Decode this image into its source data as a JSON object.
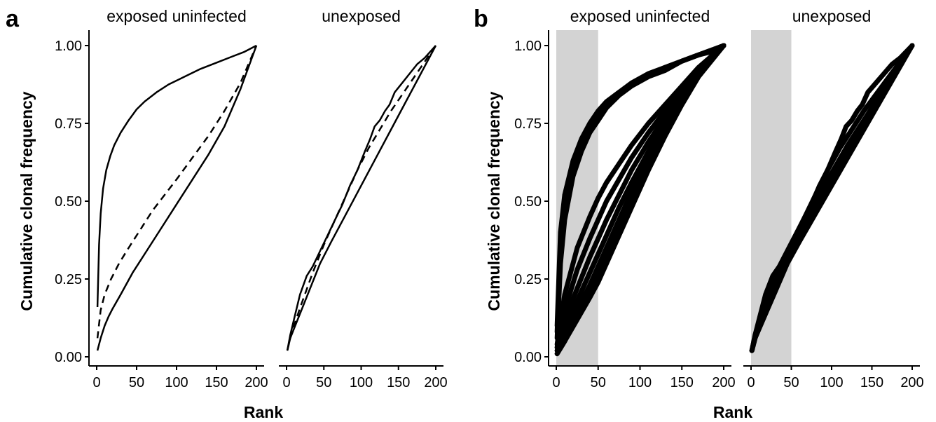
{
  "figure": {
    "panel_a_label": "a",
    "panel_b_label": "b",
    "x_axis_title": "Rank",
    "y_axis_title": "Cumulative clonal frequency"
  },
  "chart_data": [
    {
      "type": "line",
      "panel": "a",
      "xlabel": "Rank",
      "ylabel": "Cumulative clonal frequency",
      "xlim": [
        0,
        200
      ],
      "ylim": [
        0,
        1
      ],
      "x_ticks": [
        "0",
        "50",
        "100",
        "150",
        "200"
      ],
      "y_ticks": [
        "0.00",
        "0.25",
        "0.50",
        "0.75",
        "1.00"
      ],
      "grid": false,
      "facets": [
        {
          "name": "exposed uninfected",
          "series": [
            {
              "style": "solid",
              "x": [
                1,
                3,
                5,
                8,
                12,
                17,
                22,
                30,
                40,
                50,
                60,
                75,
                90,
                110,
                130,
                150,
                170,
                185,
                200
              ],
              "y": [
                0.16,
                0.36,
                0.46,
                0.54,
                0.6,
                0.645,
                0.68,
                0.72,
                0.76,
                0.795,
                0.82,
                0.85,
                0.875,
                0.9,
                0.925,
                0.945,
                0.965,
                0.98,
                1.0
              ]
            },
            {
              "style": "dashed",
              "x": [
                1,
                5,
                10,
                18,
                28,
                40,
                55,
                70,
                85,
                100,
                120,
                140,
                160,
                180,
                200
              ],
              "y": [
                0.06,
                0.15,
                0.2,
                0.25,
                0.3,
                0.35,
                0.41,
                0.47,
                0.52,
                0.57,
                0.64,
                0.71,
                0.79,
                0.88,
                1.0
              ]
            },
            {
              "style": "solid",
              "x": [
                1,
                5,
                10,
                15,
                20,
                30,
                45,
                60,
                80,
                100,
                120,
                140,
                160,
                180,
                200
              ],
              "y": [
                0.02,
                0.06,
                0.1,
                0.13,
                0.155,
                0.2,
                0.27,
                0.33,
                0.41,
                0.49,
                0.57,
                0.65,
                0.74,
                0.86,
                1.0
              ]
            }
          ]
        },
        {
          "name": "unexposed",
          "series": [
            {
              "style": "solid",
              "x": [
                1,
                5,
                10,
                18,
                27,
                35,
                45,
                55,
                65,
                75,
                85,
                95,
                105,
                112,
                118,
                125,
                132,
                138,
                145,
                155,
                165,
                175,
                185,
                200
              ],
              "y": [
                0.02,
                0.07,
                0.12,
                0.2,
                0.26,
                0.29,
                0.34,
                0.39,
                0.44,
                0.49,
                0.55,
                0.6,
                0.66,
                0.7,
                0.74,
                0.76,
                0.79,
                0.81,
                0.85,
                0.88,
                0.91,
                0.94,
                0.96,
                1.0
              ]
            },
            {
              "style": "dashed",
              "x": [
                1,
                5,
                10,
                20,
                35,
                50,
                65,
                80,
                95,
                110,
                125,
                140,
                160,
                180,
                200
              ],
              "y": [
                0.02,
                0.06,
                0.1,
                0.17,
                0.27,
                0.36,
                0.44,
                0.52,
                0.6,
                0.67,
                0.73,
                0.79,
                0.86,
                0.93,
                1.0
              ]
            },
            {
              "style": "solid",
              "x": [
                1,
                5,
                10,
                20,
                30,
                45,
                60,
                80,
                100,
                120,
                140,
                160,
                180,
                200
              ],
              "y": [
                0.02,
                0.06,
                0.09,
                0.15,
                0.21,
                0.3,
                0.37,
                0.46,
                0.55,
                0.64,
                0.73,
                0.82,
                0.91,
                1.0
              ]
            }
          ]
        }
      ]
    },
    {
      "type": "scatter",
      "panel": "b",
      "xlabel": "Rank",
      "ylabel": "Cumulative clonal frequency",
      "xlim": [
        0,
        200
      ],
      "ylim": [
        0,
        1
      ],
      "x_ticks": [
        "0",
        "50",
        "100",
        "150",
        "200"
      ],
      "y_ticks": [
        "0.00",
        "0.25",
        "0.50",
        "0.75",
        "1.00"
      ],
      "grid": false,
      "highlight_band": {
        "x": [
          0,
          50
        ],
        "color": "#d3d3d3"
      },
      "facets": [
        {
          "name": "exposed uninfected",
          "series": [
            {
              "x": [
                1,
                5,
                10,
                20,
                30,
                40,
                50,
                60,
                75,
                90,
                110,
                130,
                150,
                170,
                185,
                200
              ],
              "y": [
                0.1,
                0.4,
                0.52,
                0.63,
                0.7,
                0.75,
                0.79,
                0.82,
                0.85,
                0.88,
                0.91,
                0.93,
                0.95,
                0.97,
                0.98,
                1.0
              ]
            },
            {
              "x": [
                1,
                5,
                10,
                20,
                30,
                40,
                50,
                60,
                75,
                90,
                110,
                130,
                150,
                170,
                185,
                200
              ],
              "y": [
                0.06,
                0.3,
                0.44,
                0.58,
                0.66,
                0.72,
                0.76,
                0.8,
                0.84,
                0.87,
                0.9,
                0.92,
                0.95,
                0.97,
                0.985,
                1.0
              ]
            },
            {
              "x": [
                1,
                5,
                10,
                20,
                30,
                40,
                50,
                60,
                75,
                90,
                110,
                130,
                150,
                170,
                185,
                200
              ],
              "y": [
                0.08,
                0.35,
                0.48,
                0.6,
                0.68,
                0.73,
                0.77,
                0.81,
                0.845,
                0.875,
                0.905,
                0.93,
                0.95,
                0.97,
                0.985,
                1.0
              ]
            },
            {
              "x": [
                1,
                10,
                25,
                40,
                50,
                60,
                75,
                90,
                110,
                130,
                150,
                170,
                200
              ],
              "y": [
                0.04,
                0.2,
                0.35,
                0.45,
                0.51,
                0.56,
                0.62,
                0.68,
                0.75,
                0.81,
                0.87,
                0.93,
                1.0
              ]
            },
            {
              "x": [
                1,
                10,
                25,
                40,
                50,
                60,
                75,
                90,
                110,
                130,
                150,
                170,
                200
              ],
              "y": [
                0.03,
                0.15,
                0.28,
                0.38,
                0.44,
                0.5,
                0.57,
                0.64,
                0.72,
                0.79,
                0.86,
                0.92,
                1.0
              ]
            },
            {
              "x": [
                1,
                10,
                25,
                40,
                50,
                60,
                75,
                90,
                110,
                130,
                150,
                170,
                200
              ],
              "y": [
                0.03,
                0.12,
                0.22,
                0.32,
                0.38,
                0.44,
                0.52,
                0.6,
                0.69,
                0.77,
                0.85,
                0.92,
                1.0
              ]
            },
            {
              "x": [
                1,
                10,
                25,
                40,
                50,
                60,
                75,
                90,
                110,
                130,
                150,
                170,
                200
              ],
              "y": [
                0.02,
                0.09,
                0.18,
                0.27,
                0.33,
                0.39,
                0.48,
                0.56,
                0.66,
                0.76,
                0.84,
                0.92,
                1.0
              ]
            },
            {
              "x": [
                1,
                10,
                25,
                40,
                50,
                60,
                75,
                90,
                110,
                130,
                150,
                170,
                200
              ],
              "y": [
                0.02,
                0.07,
                0.15,
                0.23,
                0.29,
                0.35,
                0.44,
                0.53,
                0.64,
                0.74,
                0.83,
                0.91,
                1.0
              ]
            },
            {
              "x": [
                1,
                10,
                25,
                40,
                50,
                60,
                75,
                90,
                110,
                130,
                150,
                170,
                200
              ],
              "y": [
                0.01,
                0.05,
                0.12,
                0.19,
                0.24,
                0.3,
                0.39,
                0.48,
                0.6,
                0.71,
                0.81,
                0.9,
                1.0
              ]
            },
            {
              "x": [
                1,
                10,
                25,
                40,
                50,
                60,
                75,
                90,
                110,
                130,
                150,
                170,
                200
              ],
              "y": [
                0.01,
                0.05,
                0.14,
                0.21,
                0.26,
                0.32,
                0.41,
                0.5,
                0.62,
                0.72,
                0.82,
                0.91,
                1.0
              ]
            }
          ]
        },
        {
          "name": "unexposed",
          "series": [
            {
              "x": [
                1,
                5,
                10,
                18,
                27,
                35,
                45,
                55,
                65,
                75,
                85,
                95,
                105,
                112,
                118,
                125,
                132,
                138,
                145,
                155,
                165,
                175,
                185,
                200
              ],
              "y": [
                0.02,
                0.07,
                0.12,
                0.2,
                0.26,
                0.29,
                0.34,
                0.39,
                0.44,
                0.49,
                0.55,
                0.6,
                0.66,
                0.7,
                0.74,
                0.76,
                0.79,
                0.81,
                0.85,
                0.88,
                0.91,
                0.94,
                0.96,
                1.0
              ]
            },
            {
              "x": [
                1,
                5,
                10,
                20,
                35,
                50,
                65,
                80,
                95,
                110,
                125,
                140,
                160,
                180,
                200
              ],
              "y": [
                0.02,
                0.06,
                0.1,
                0.17,
                0.27,
                0.36,
                0.44,
                0.52,
                0.6,
                0.67,
                0.73,
                0.79,
                0.86,
                0.93,
                1.0
              ]
            },
            {
              "x": [
                1,
                5,
                10,
                20,
                30,
                45,
                60,
                80,
                100,
                120,
                140,
                160,
                180,
                200
              ],
              "y": [
                0.02,
                0.06,
                0.09,
                0.15,
                0.21,
                0.3,
                0.37,
                0.46,
                0.55,
                0.64,
                0.73,
                0.82,
                0.91,
                1.0
              ]
            },
            {
              "x": [
                1,
                5,
                10,
                20,
                30,
                45,
                60,
                80,
                100,
                120,
                140,
                160,
                180,
                200
              ],
              "y": [
                0.02,
                0.07,
                0.11,
                0.18,
                0.24,
                0.33,
                0.41,
                0.5,
                0.59,
                0.68,
                0.76,
                0.84,
                0.92,
                1.0
              ]
            },
            {
              "x": [
                1,
                5,
                10,
                20,
                30,
                45,
                60,
                80,
                100,
                120,
                140,
                160,
                180,
                200
              ],
              "y": [
                0.02,
                0.06,
                0.1,
                0.16,
                0.23,
                0.32,
                0.39,
                0.48,
                0.57,
                0.66,
                0.75,
                0.83,
                0.92,
                1.0
              ]
            }
          ]
        }
      ]
    }
  ]
}
